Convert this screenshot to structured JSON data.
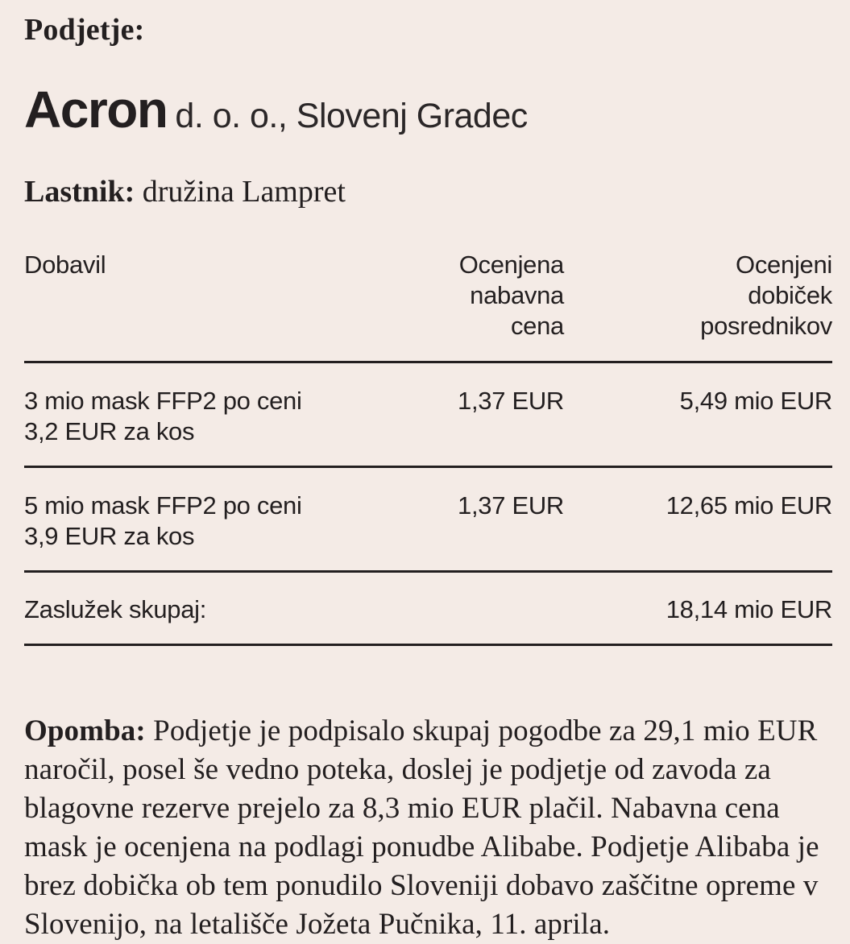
{
  "page": {
    "background_color": "#f4ebe6",
    "text_color": "#231f20",
    "rule_color": "#231f20"
  },
  "header": {
    "company_label": "Podjetje:",
    "company_name": "Acron",
    "company_suffix": "d. o. o., Slovenj Gradec",
    "owner_label": "Lastnik:",
    "owner_value": "družina Lampret"
  },
  "table": {
    "columns": [
      "Dobavil",
      "Ocenjena\nnabavna\ncena",
      "Ocenjeni\ndobiček\nposrednikov"
    ],
    "rows": [
      {
        "supplied": "3 mio mask FFP2 po ceni\n3,2 EUR za kos",
        "purchase_price": "1,37 EUR",
        "middleman_profit": "5,49 mio EUR"
      },
      {
        "supplied": "5 mio mask FFP2 po ceni\n3,9 EUR za kos",
        "purchase_price": "1,37 EUR",
        "middleman_profit": "12,65 mio EUR"
      }
    ],
    "total_label": "Zaslužek skupaj:",
    "total_value": "18,14 mio EUR"
  },
  "note": {
    "label": "Opomba:",
    "text": "Podjetje je podpisalo skupaj pogodbe za 29,1 mio EUR naročil, posel še vedno poteka, doslej je podjetje od zavoda za blagovne rezerve prejelo za 8,3 mio EUR plačil. Nabavna cena mask je ocenjena na podlagi ponudbe Alibabe. Podjetje Alibaba je brez dobička ob tem ponudilo Sloveniji dobavo zaščitne opreme v Slovenijo, na letališče Jožeta Pučnika, 11. aprila."
  },
  "chart_data": {
    "type": "table",
    "title": "Acron d. o. o., Slovenj Gradec",
    "subtitle": "Lastnik: družina Lampret",
    "columns": [
      "Dobavil",
      "Ocenjena nabavna cena",
      "Ocenjeni dobiček posrednikov"
    ],
    "rows": [
      [
        "3 mio mask FFP2 po ceni 3,2 EUR za kos",
        "1,37 EUR",
        "5,49 mio EUR"
      ],
      [
        "5 mio mask FFP2 po ceni 3,9 EUR za kos",
        "1,37 EUR",
        "12,65 mio EUR"
      ]
    ],
    "totals": {
      "label": "Zaslužek skupaj:",
      "value": "18,14 mio EUR"
    },
    "units": "EUR",
    "numeric_values": {
      "masks_millions": [
        3,
        5
      ],
      "contract_price_eur_per_piece": [
        3.2,
        3.9
      ],
      "estimated_purchase_price_eur": [
        1.37,
        1.37
      ],
      "estimated_middleman_profit_mio_eur": [
        5.49,
        12.65
      ],
      "total_profit_mio_eur": 18.14,
      "total_contracts_mio_eur": 29.1,
      "payments_received_mio_eur": 8.3
    }
  }
}
